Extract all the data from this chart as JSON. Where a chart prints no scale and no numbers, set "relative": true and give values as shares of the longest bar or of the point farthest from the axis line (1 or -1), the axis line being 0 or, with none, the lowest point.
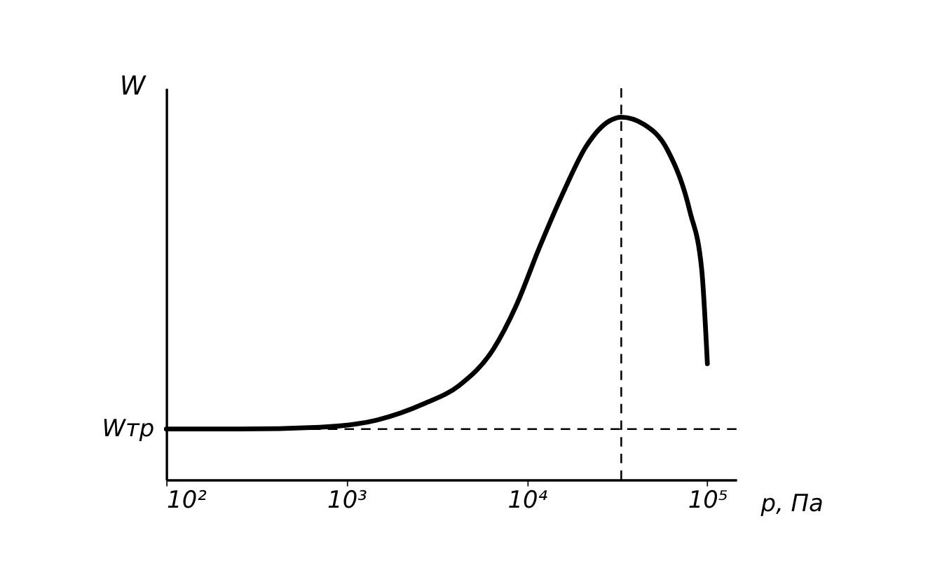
{
  "chart_data": {
    "type": "line",
    "relative": true,
    "xlabel": "p, Па",
    "ylabel": "W",
    "log": "x",
    "xlim": [
      100,
      145000
    ],
    "xticks": [
      {
        "value": 100,
        "label": "10²"
      },
      {
        "value": 1000,
        "label": "10³"
      },
      {
        "value": 10000,
        "label": "10⁴"
      },
      {
        "value": 100000,
        "label": "10⁵"
      }
    ],
    "tick_labels": "x",
    "grid": false,
    "marker": "none",
    "line_style": "solid",
    "series": [
      {
        "color": "#000000",
        "x": [
          100,
          253,
          710,
          1480,
          2690,
          4200,
          6500,
          8700,
          11700,
          15800,
          21300,
          28700,
          33300,
          44500,
          60000,
          80000,
          93000,
          100000
        ],
        "values": [
          0.14,
          0.14,
          0.145,
          0.165,
          0.21,
          0.26,
          0.36,
          0.48,
          0.64,
          0.79,
          0.92,
          0.99,
          1,
          0.98,
          0.91,
          0.74,
          0.58,
          0.32
        ]
      }
    ],
    "ref_lines": [
      {
        "axis": "y",
        "value": 0.14,
        "label": "Wтр",
        "line_style": "dashed",
        "color": "#000000"
      },
      {
        "axis": "x",
        "value": 33300,
        "line_style": "dashed",
        "color": "#000000"
      }
    ]
  }
}
